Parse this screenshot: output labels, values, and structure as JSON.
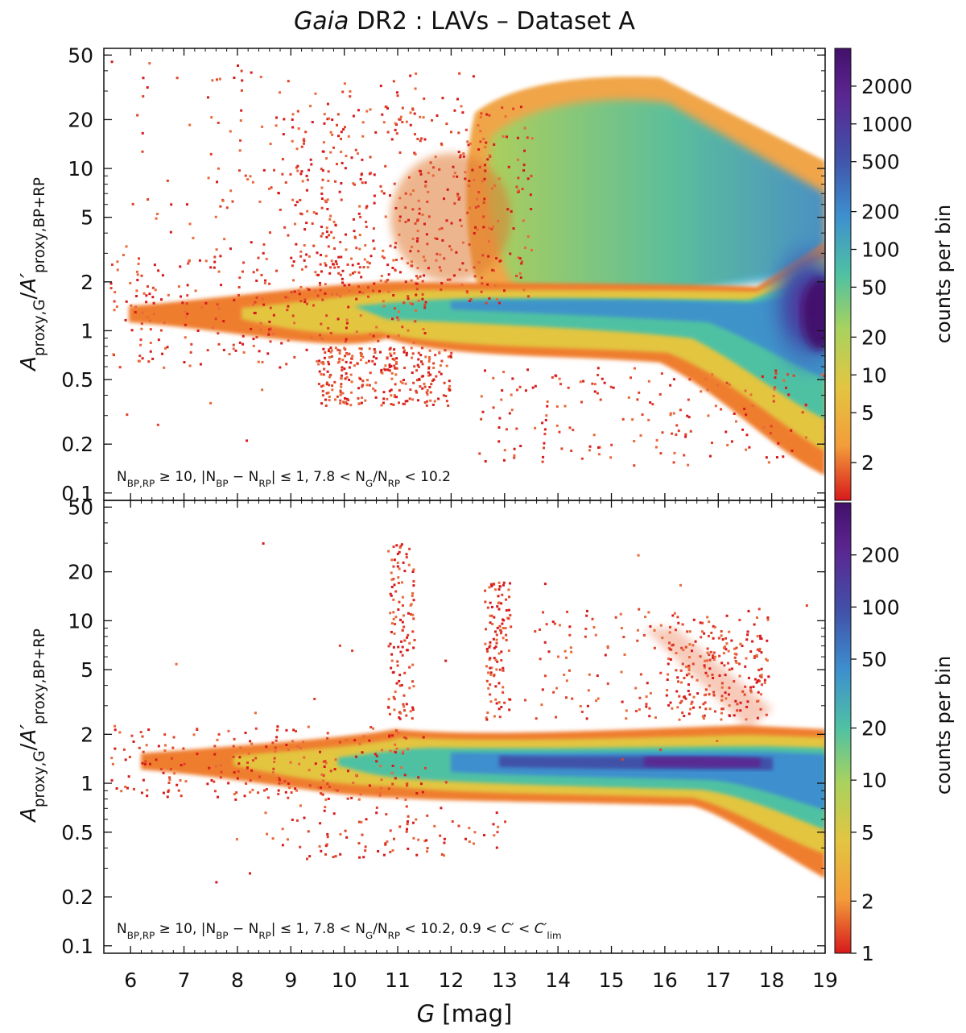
{
  "figure": {
    "title_italic": "Gaia",
    "title_rest": " DR2 :  LAVs  –  Dataset A",
    "xlabel_italic": "G",
    "xlabel_rest": "  [mag]",
    "colorbar_label": "counts per bin"
  },
  "chart_data": [
    {
      "type": "heatmap",
      "panel": "top",
      "title": "Gaia DR2 : LAVs – Dataset A",
      "xlabel": "G [mag]",
      "ylabel": "A_proxy,G / A'_proxy,BP+RP",
      "x_ticks": [
        6,
        7,
        8,
        9,
        10,
        11,
        12,
        13,
        14,
        15,
        16,
        17,
        18,
        19
      ],
      "y_ticks": [
        0.1,
        0.2,
        0.5,
        1,
        2,
        5,
        10,
        20,
        50
      ],
      "y_tick_labels": [
        "0.1",
        "0.2",
        "0.5",
        "1",
        "2",
        "5",
        "10",
        "20",
        "50"
      ],
      "xlim": [
        5.5,
        19
      ],
      "ylim": [
        0.09,
        55
      ],
      "yscale": "log",
      "colorbar_scale": "log",
      "colorbar_range": [
        1,
        4000
      ],
      "colorbar_ticks": [
        2,
        5,
        10,
        20,
        50,
        100,
        200,
        500,
        1000,
        2000
      ],
      "colorbar_tick_labels": [
        "2",
        "5",
        "10",
        "20",
        "50",
        "100",
        "200",
        "500",
        "1000",
        "2000"
      ],
      "colorbar_label": "counts per bin",
      "annotation_parts": [
        {
          "t": "N",
          "s": "n"
        },
        {
          "t": "BP,RP",
          "s": "sub"
        },
        {
          "t": " ≥ 10,  |N",
          "s": "n"
        },
        {
          "t": "BP",
          "s": "sub"
        },
        {
          "t": " − N",
          "s": "n"
        },
        {
          "t": "RP",
          "s": "sub"
        },
        {
          "t": "| ≤ 1,  7.8 < N",
          "s": "n"
        },
        {
          "t": "G",
          "s": "sub"
        },
        {
          "t": "/N",
          "s": "n"
        },
        {
          "t": "RP",
          "s": "sub"
        },
        {
          "t": " < 10.2",
          "s": "n"
        }
      ]
    },
    {
      "type": "heatmap",
      "panel": "bottom",
      "xlabel": "G [mag]",
      "ylabel": "A_proxy,G / A'_proxy,BP+RP",
      "x_ticks": [
        6,
        7,
        8,
        9,
        10,
        11,
        12,
        13,
        14,
        15,
        16,
        17,
        18,
        19
      ],
      "x_tick_labels": [
        "6",
        "7",
        "8",
        "9",
        "10",
        "11",
        "12",
        "13",
        "14",
        "15",
        "16",
        "17",
        "18",
        "19"
      ],
      "y_ticks": [
        0.1,
        0.2,
        0.5,
        1,
        2,
        5,
        10,
        20,
        50
      ],
      "y_tick_labels": [
        "0.1",
        "0.2",
        "0.5",
        "1",
        "2",
        "5",
        "10",
        "20",
        "50"
      ],
      "xlim": [
        5.5,
        19
      ],
      "ylim": [
        0.09,
        55
      ],
      "yscale": "log",
      "colorbar_scale": "log",
      "colorbar_range": [
        1,
        400
      ],
      "colorbar_ticks": [
        1,
        2,
        5,
        10,
        20,
        50,
        100,
        200
      ],
      "colorbar_tick_labels": [
        "1",
        "2",
        "5",
        "10",
        "20",
        "50",
        "100",
        "200"
      ],
      "colorbar_label": "counts per bin",
      "annotation_parts": [
        {
          "t": "N",
          "s": "n"
        },
        {
          "t": "BP,RP",
          "s": "sub"
        },
        {
          "t": " ≥ 10,  |N",
          "s": "n"
        },
        {
          "t": "BP",
          "s": "sub"
        },
        {
          "t": " − N",
          "s": "n"
        },
        {
          "t": "RP",
          "s": "sub"
        },
        {
          "t": "| ≤ 1,  7.8 < N",
          "s": "n"
        },
        {
          "t": "G",
          "s": "sub"
        },
        {
          "t": "/N",
          "s": "n"
        },
        {
          "t": "RP",
          "s": "sub"
        },
        {
          "t": " < 10.2,  0.9 < ",
          "s": "n"
        },
        {
          "t": "C′",
          "s": "i"
        },
        {
          "t": " < ",
          "s": "n"
        },
        {
          "t": "C′",
          "s": "i"
        },
        {
          "t": "lim",
          "s": "sub"
        }
      ]
    }
  ],
  "ylabel_parts": [
    {
      "t": "A",
      "s": "i"
    },
    {
      "t": "proxy,G",
      "s": "sub"
    },
    {
      "t": "/",
      "s": "n"
    },
    {
      "t": "A′",
      "s": "i"
    },
    {
      "t": "proxy,BP+RP",
      "s": "sub"
    }
  ],
  "colors": {
    "colormap": [
      "#d7191c",
      "#f39c3a",
      "#e3c541",
      "#a8d25e",
      "#4fc1a3",
      "#3d8fce",
      "#4151a8",
      "#5b2590",
      "#43106b"
    ]
  }
}
